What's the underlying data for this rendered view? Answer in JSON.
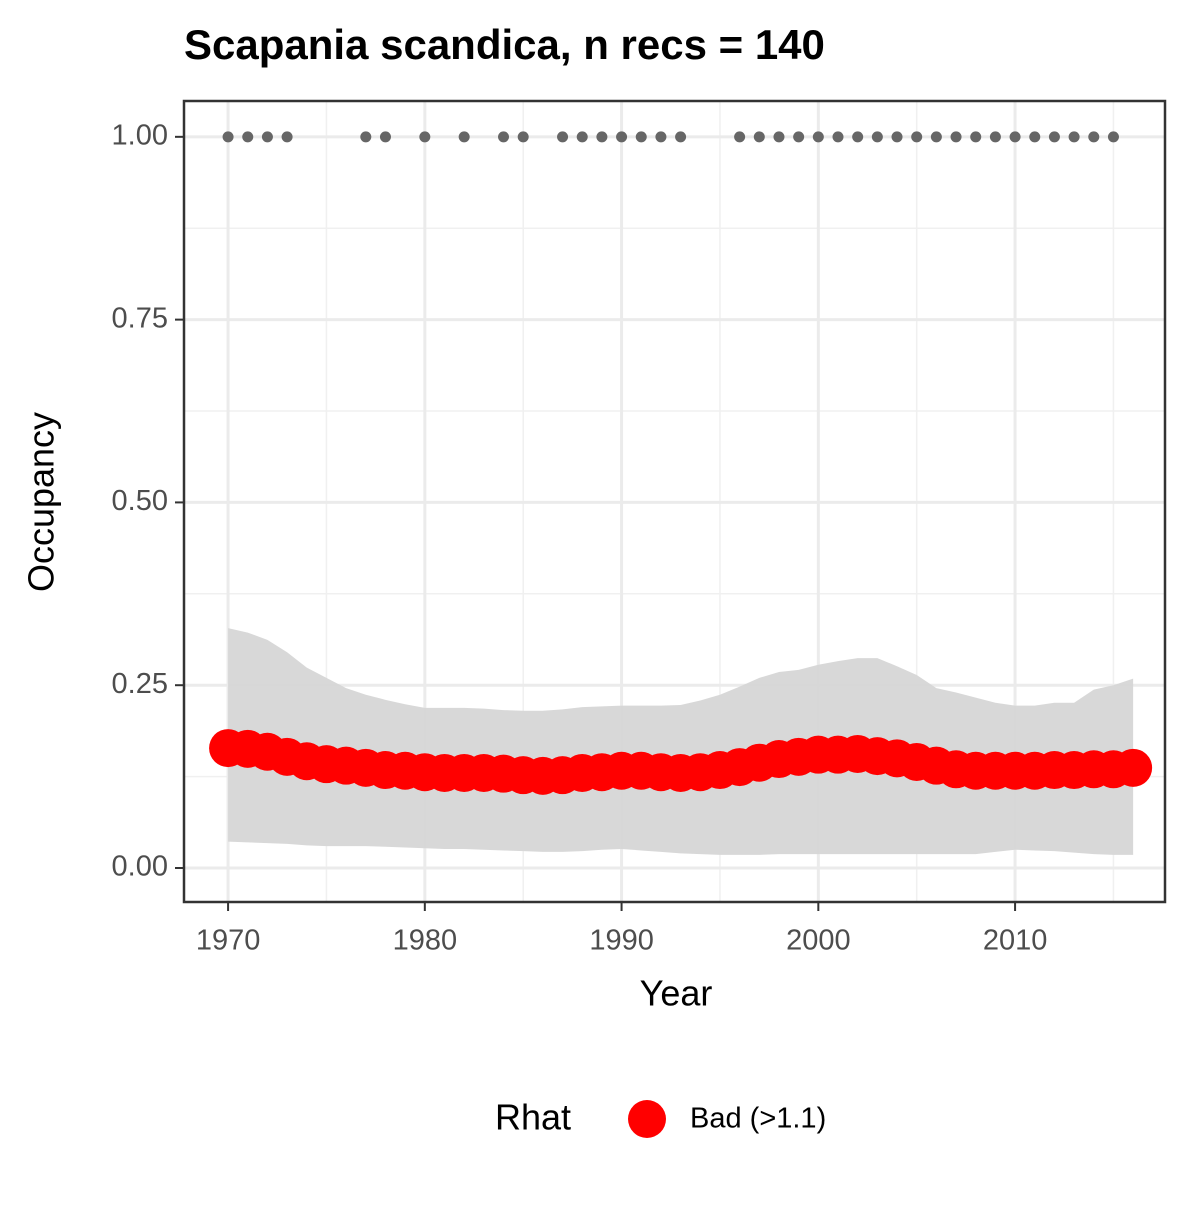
{
  "chart_data": {
    "type": "line",
    "title": "Scapania scandica, n recs = 140",
    "x_label": "Year",
    "y_label": "Occupancy",
    "x": [
      1970,
      1971,
      1972,
      1973,
      1974,
      1975,
      1976,
      1977,
      1978,
      1979,
      1980,
      1981,
      1982,
      1983,
      1984,
      1985,
      1986,
      1987,
      1988,
      1989,
      1990,
      1991,
      1992,
      1993,
      1994,
      1995,
      1996,
      1997,
      1998,
      1999,
      2000,
      2001,
      2002,
      2003,
      2004,
      2005,
      2006,
      2007,
      2008,
      2009,
      2010,
      2011,
      2012,
      2013,
      2014,
      2015,
      2016
    ],
    "series": [
      {
        "name": "Bad (>1.1)",
        "color": "#ff0000",
        "values": [
          0.164,
          0.163,
          0.159,
          0.152,
          0.146,
          0.142,
          0.14,
          0.137,
          0.134,
          0.133,
          0.131,
          0.13,
          0.13,
          0.13,
          0.129,
          0.127,
          0.126,
          0.127,
          0.13,
          0.131,
          0.133,
          0.133,
          0.131,
          0.13,
          0.131,
          0.134,
          0.138,
          0.144,
          0.149,
          0.152,
          0.155,
          0.155,
          0.156,
          0.153,
          0.15,
          0.145,
          0.14,
          0.135,
          0.133,
          0.133,
          0.133,
          0.133,
          0.134,
          0.134,
          0.135,
          0.135,
          0.137
        ],
        "upper": [
          0.328,
          0.322,
          0.312,
          0.295,
          0.274,
          0.26,
          0.246,
          0.237,
          0.23,
          0.224,
          0.219,
          0.219,
          0.219,
          0.218,
          0.216,
          0.215,
          0.215,
          0.217,
          0.22,
          0.221,
          0.222,
          0.222,
          0.222,
          0.223,
          0.229,
          0.237,
          0.248,
          0.26,
          0.268,
          0.271,
          0.278,
          0.283,
          0.287,
          0.287,
          0.276,
          0.264,
          0.246,
          0.24,
          0.233,
          0.226,
          0.222,
          0.222,
          0.226,
          0.226,
          0.244,
          0.25,
          0.259
        ],
        "lower": [
          0.036,
          0.035,
          0.034,
          0.033,
          0.031,
          0.03,
          0.03,
          0.03,
          0.029,
          0.028,
          0.027,
          0.026,
          0.026,
          0.025,
          0.024,
          0.023,
          0.022,
          0.022,
          0.023,
          0.025,
          0.026,
          0.024,
          0.022,
          0.02,
          0.019,
          0.018,
          0.018,
          0.018,
          0.019,
          0.019,
          0.019,
          0.019,
          0.019,
          0.019,
          0.019,
          0.019,
          0.019,
          0.019,
          0.019,
          0.022,
          0.025,
          0.024,
          0.023,
          0.021,
          0.019,
          0.018,
          0.018
        ]
      }
    ],
    "band_color": "#d6d6d6",
    "records": {
      "color": "#666666",
      "x": [
        1970,
        1971,
        1972,
        1973,
        1977,
        1978,
        1980,
        1982,
        1984,
        1985,
        1987,
        1988,
        1989,
        1990,
        1991,
        1992,
        1993,
        1996,
        1997,
        1998,
        1999,
        2000,
        2001,
        2002,
        2003,
        2004,
        2005,
        2006,
        2007,
        2008,
        2009,
        2010,
        2011,
        2012,
        2013,
        2014,
        2015
      ],
      "values": [
        1,
        1,
        1,
        1,
        1,
        1,
        1,
        1,
        1,
        1,
        1,
        1,
        1,
        1,
        1,
        1,
        1,
        1,
        1,
        1,
        1,
        1,
        1,
        1,
        1,
        1,
        1,
        1,
        1,
        1,
        1,
        1,
        1,
        1,
        1,
        1,
        1
      ]
    },
    "xlim": [
      1967.76,
      2017.62
    ],
    "xticks": [
      1970,
      1980,
      1990,
      2000,
      2010
    ],
    "xminor": [
      1975,
      1985,
      1995,
      2005,
      2015
    ],
    "ylim": [
      -0.0465,
      1.049
    ],
    "yticks": [
      {
        "value": 0,
        "label": "0.00"
      },
      {
        "value": 0.25,
        "label": "0.25"
      },
      {
        "value": 0.5,
        "label": "0.50"
      },
      {
        "value": 0.75,
        "label": "0.75"
      },
      {
        "value": 1,
        "label": "1.00"
      }
    ],
    "yminor": [
      0.125,
      0.375,
      0.625,
      0.875
    ],
    "grid": true,
    "legend_title": "Rhat",
    "legend_position": "bottom"
  }
}
